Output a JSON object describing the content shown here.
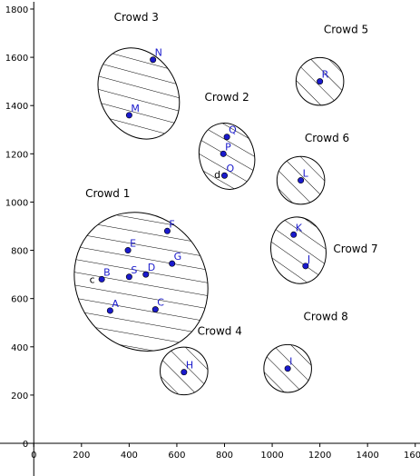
{
  "chart_data": {
    "type": "scatter",
    "title": "",
    "xlabel": "",
    "ylabel": "",
    "xlim": [
      -20,
      1620
    ],
    "ylim": [
      -30,
      1830
    ],
    "x_ticks": [
      0,
      200,
      400,
      600,
      800,
      1000,
      1200,
      1400,
      1600
    ],
    "y_ticks": [
      0,
      200,
      400,
      600,
      800,
      1000,
      1200,
      1400,
      1600,
      1800
    ],
    "grid": false,
    "colors": {
      "point": "#1a1acc",
      "text": "#000000",
      "hatch": "#000000"
    },
    "crowds": [
      {
        "name": "Crowd 1",
        "cx": 450,
        "cy": 670,
        "rx": 270,
        "ry": 300,
        "angle": -35,
        "label_x": 310,
        "label_y": 1020
      },
      {
        "name": "Crowd 2",
        "cx": 810,
        "cy": 1190,
        "rx": 115,
        "ry": 140,
        "angle": -15,
        "label_x": 810,
        "label_y": 1420
      },
      {
        "name": "Crowd 3",
        "cx": 440,
        "cy": 1450,
        "rx": 160,
        "ry": 200,
        "angle": -30,
        "label_x": 430,
        "label_y": 1750
      },
      {
        "name": "Crowd 4",
        "cx": 630,
        "cy": 300,
        "rx": 100,
        "ry": 100,
        "angle": 0,
        "label_x": 780,
        "label_y": 450
      },
      {
        "name": "Crowd 5",
        "cx": 1200,
        "cy": 1500,
        "rx": 100,
        "ry": 100,
        "angle": 0,
        "label_x": 1310,
        "label_y": 1700
      },
      {
        "name": "Crowd 6",
        "cx": 1120,
        "cy": 1090,
        "rx": 100,
        "ry": 100,
        "angle": 0,
        "label_x": 1230,
        "label_y": 1250
      },
      {
        "name": "Crowd 7",
        "cx": 1110,
        "cy": 800,
        "rx": 115,
        "ry": 140,
        "angle": -10,
        "label_x": 1350,
        "label_y": 790
      },
      {
        "name": "Crowd 8",
        "cx": 1065,
        "cy": 310,
        "rx": 100,
        "ry": 100,
        "angle": 0,
        "label_x": 1225,
        "label_y": 510
      }
    ],
    "points": [
      {
        "label": "A",
        "x": 320,
        "y": 550
      },
      {
        "label": "B",
        "x": 285,
        "y": 680
      },
      {
        "label": "C",
        "x": 510,
        "y": 555
      },
      {
        "label": "D",
        "x": 470,
        "y": 700
      },
      {
        "label": "E",
        "x": 395,
        "y": 800
      },
      {
        "label": "F",
        "x": 560,
        "y": 880
      },
      {
        "label": "G",
        "x": 580,
        "y": 745
      },
      {
        "label": "S",
        "x": 400,
        "y": 690
      },
      {
        "label": "H",
        "x": 630,
        "y": 295
      },
      {
        "label": "I",
        "x": 1065,
        "y": 310
      },
      {
        "label": "J",
        "x": 1140,
        "y": 735
      },
      {
        "label": "K",
        "x": 1090,
        "y": 865
      },
      {
        "label": "L",
        "x": 1120,
        "y": 1090
      },
      {
        "label": "M",
        "x": 400,
        "y": 1360
      },
      {
        "label": "N",
        "x": 500,
        "y": 1590
      },
      {
        "label": "O",
        "x": 800,
        "y": 1110
      },
      {
        "label": "P",
        "x": 795,
        "y": 1200
      },
      {
        "label": "Q",
        "x": 810,
        "y": 1270
      },
      {
        "label": "R",
        "x": 1200,
        "y": 1500
      }
    ],
    "extra_labels": [
      {
        "text": "c",
        "x": 245,
        "y": 680
      },
      {
        "text": "d",
        "x": 770,
        "y": 1115
      }
    ]
  }
}
